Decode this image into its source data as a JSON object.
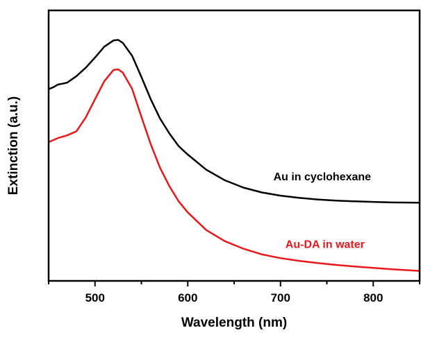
{
  "chart_data": {
    "type": "line",
    "title": "",
    "xlabel": "Wavelength (nm)",
    "ylabel": "Extinction (a.u.)",
    "xlim": [
      450,
      850
    ],
    "ylim": [
      0,
      1
    ],
    "xticks": [
      500,
      600,
      700,
      800
    ],
    "xtick_labels": [
      "500",
      "600",
      "700",
      "800"
    ],
    "show_y_tick_labels": false,
    "grid": false,
    "legend": "none",
    "series": [
      {
        "name": "Au in cyclohexane",
        "color": "#000000",
        "x": [
          450,
          455,
          460,
          465,
          470,
          480,
          490,
          500,
          510,
          520,
          525,
          530,
          540,
          550,
          560,
          570,
          580,
          590,
          600,
          620,
          640,
          660,
          680,
          700,
          720,
          740,
          760,
          780,
          800,
          820,
          850
        ],
        "y": [
          0.709,
          0.716,
          0.726,
          0.729,
          0.733,
          0.757,
          0.788,
          0.826,
          0.866,
          0.889,
          0.891,
          0.88,
          0.832,
          0.754,
          0.672,
          0.601,
          0.546,
          0.499,
          0.467,
          0.411,
          0.372,
          0.345,
          0.327,
          0.315,
          0.307,
          0.301,
          0.297,
          0.294,
          0.292,
          0.29,
          0.289
        ]
      },
      {
        "name": "Au-DA in water",
        "color": "#e8171c",
        "x": [
          450,
          460,
          470,
          480,
          490,
          500,
          510,
          520,
          525,
          530,
          540,
          550,
          560,
          570,
          580,
          590,
          600,
          620,
          640,
          660,
          680,
          700,
          720,
          740,
          760,
          780,
          800,
          820,
          850
        ],
        "y": [
          0.513,
          0.528,
          0.538,
          0.553,
          0.604,
          0.672,
          0.738,
          0.78,
          0.782,
          0.77,
          0.71,
          0.607,
          0.506,
          0.419,
          0.351,
          0.295,
          0.253,
          0.188,
          0.147,
          0.119,
          0.098,
          0.084,
          0.074,
          0.066,
          0.059,
          0.053,
          0.048,
          0.043,
          0.037
        ]
      }
    ],
    "annotations": [
      {
        "text": "Au in cyclohexane",
        "color": "#000000",
        "x": 745,
        "y": 0.372
      },
      {
        "text": "Au-DA in water",
        "color": "#e8171c",
        "x": 748,
        "y": 0.122
      }
    ]
  }
}
